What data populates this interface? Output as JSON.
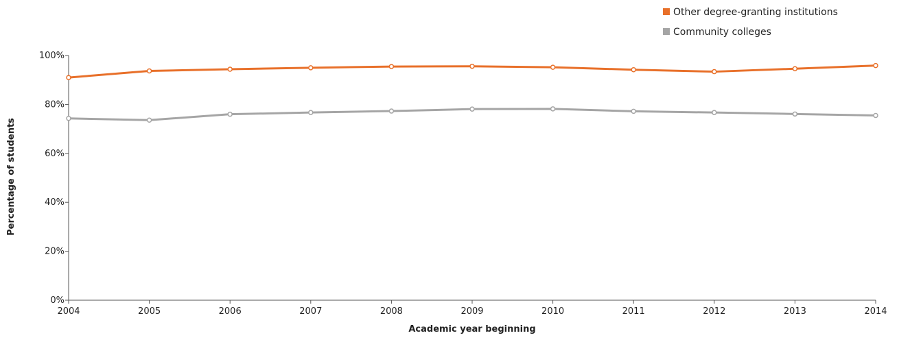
{
  "chart_data": {
    "type": "line",
    "title": "",
    "xlabel": "Academic year beginning",
    "ylabel": "Percentage of students",
    "x": [
      "2004",
      "2005",
      "2006",
      "2007",
      "2008",
      "2009",
      "2010",
      "2011",
      "2012",
      "2013",
      "2014"
    ],
    "ylim": [
      0,
      100
    ],
    "yticks": [
      0,
      20,
      40,
      60,
      80,
      100
    ],
    "ytick_labels": [
      "0%",
      "20%",
      "40%",
      "60%",
      "80%",
      "100%"
    ],
    "grid": false,
    "legend_position": "top-right",
    "series": [
      {
        "name": "Other degree-granting institutions",
        "color": "#E8702A",
        "values": [
          91,
          93.7,
          94.4,
          95,
          95.5,
          95.6,
          95.2,
          94.2,
          93.4,
          94.6,
          95.9
        ]
      },
      {
        "name": "Community colleges",
        "color": "#A5A5A5",
        "values": [
          74.3,
          73.6,
          76,
          76.7,
          77.3,
          78.1,
          78.2,
          77.2,
          76.7,
          76.1,
          75.5
        ]
      }
    ]
  }
}
